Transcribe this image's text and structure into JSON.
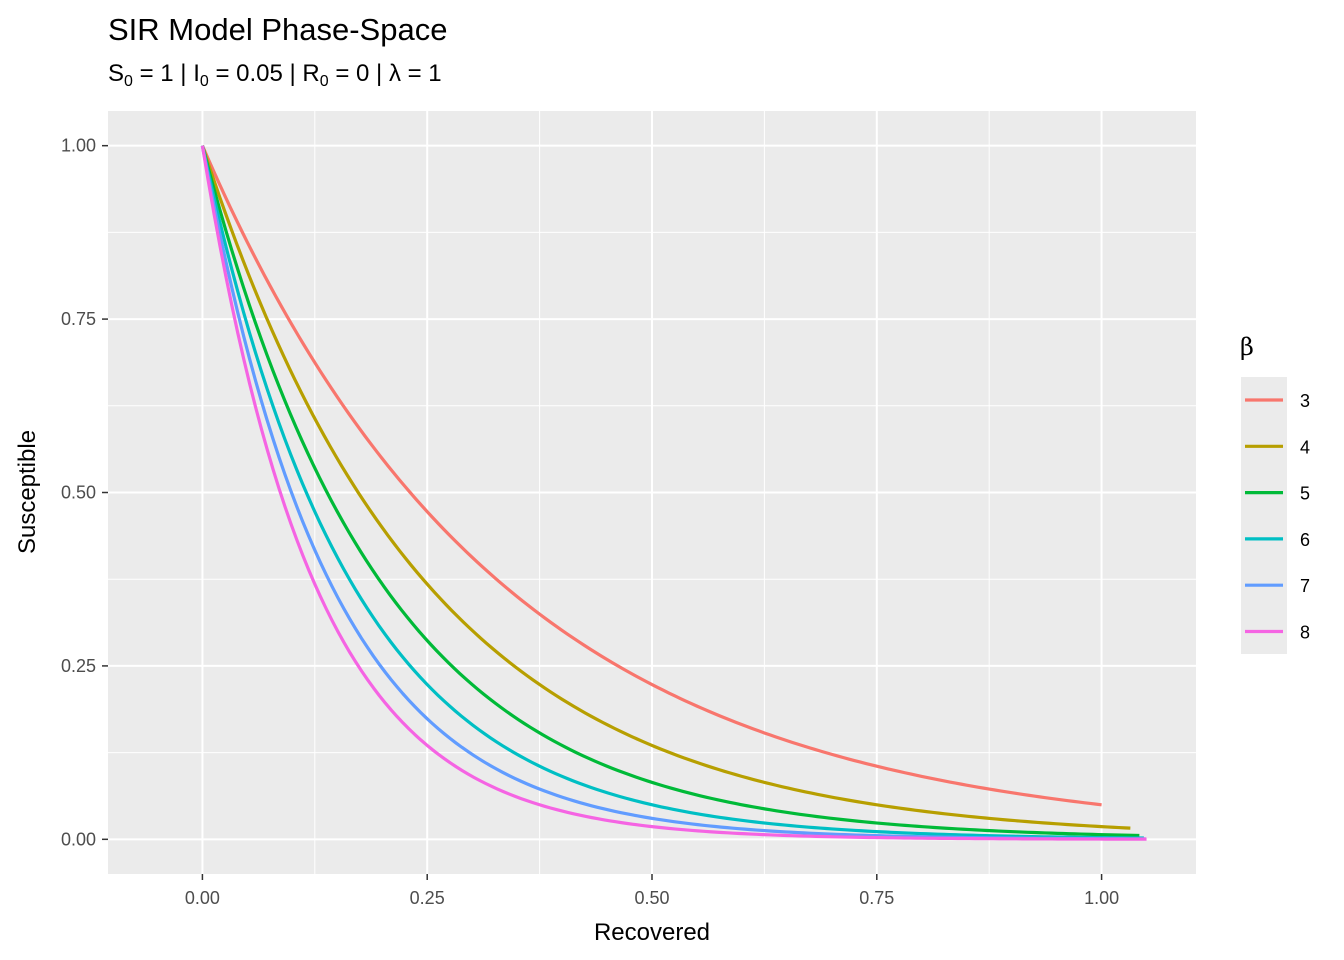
{
  "title": "SIR Model Phase-Space",
  "subtitle": {
    "s_label": "S",
    "s_value": " = 1 | ",
    "i_label": "I",
    "i_value": " = 0.05 | ",
    "r_label": "R",
    "r_value": " = 0 | ",
    "lambda_text": "λ = 1",
    "subscript": "0"
  },
  "colors": {
    "panel_background": "#EBEBEB",
    "grid_major": "#FFFFFF",
    "axis_text": "#4D4D4D"
  },
  "chart_data": {
    "type": "line",
    "xlabel": "Recovered",
    "ylabel": "Susceptible",
    "xlim": [
      -0.105,
      1.105
    ],
    "ylim": [
      -0.05,
      1.05
    ],
    "x_ticks": [
      0,
      0.25,
      0.5,
      0.75,
      1.0
    ],
    "x_tick_labels": [
      "0.00",
      "0.25",
      "0.50",
      "0.75",
      "1.00"
    ],
    "y_ticks": [
      0,
      0.25,
      0.5,
      0.75,
      1.0
    ],
    "y_tick_labels": [
      "0.00",
      "0.25",
      "0.50",
      "0.75",
      "1.00"
    ],
    "grid": true,
    "legend": {
      "title": "β",
      "position": "right"
    },
    "series": [
      {
        "name": "3",
        "color": "#F8766D",
        "k": 3.0,
        "r_end": 1.0
      },
      {
        "name": "4",
        "color": "#B79F00",
        "k": 4.0,
        "r_end": 1.032
      },
      {
        "name": "5",
        "color": "#00BA38",
        "k": 5.0,
        "r_end": 1.042
      },
      {
        "name": "6",
        "color": "#00BFC4",
        "k": 6.0,
        "r_end": 1.047
      },
      {
        "name": "7",
        "color": "#619CFF",
        "k": 7.0,
        "r_end": 1.049
      },
      {
        "name": "8",
        "color": "#F564E3",
        "k": 8.0,
        "r_end": 1.05
      }
    ]
  }
}
